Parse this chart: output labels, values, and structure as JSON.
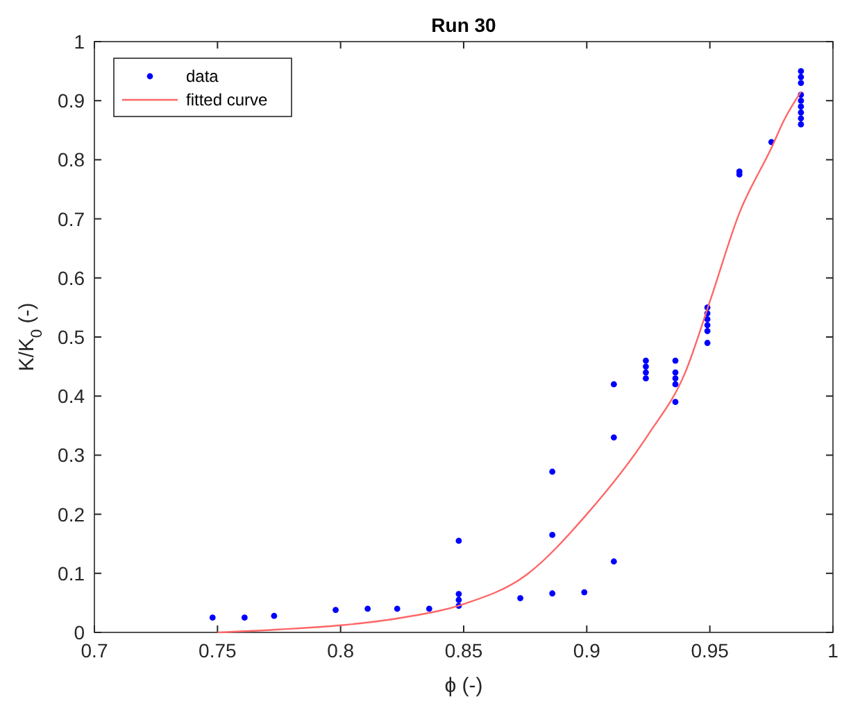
{
  "chart_data": {
    "type": "scatter",
    "title": "Run 30",
    "xlabel": "ϕ (-)",
    "ylabel": "K/K$_{0}$ (-)",
    "xlim": [
      0.7,
      1
    ],
    "ylim": [
      0,
      1
    ],
    "xticks": [
      0.7,
      0.75,
      0.8,
      0.85,
      0.9,
      0.95,
      1
    ],
    "yticks": [
      0,
      0.1,
      0.2,
      0.3,
      0.4,
      0.5,
      0.6,
      0.7,
      0.8,
      0.9,
      1
    ],
    "grid": false,
    "legend": "top left",
    "series": [
      {
        "name": "data",
        "color": "#0000ff",
        "marker": "circle",
        "x": [
          0.748,
          0.761,
          0.773,
          0.798,
          0.811,
          0.823,
          0.836,
          0.848,
          0.848,
          0.848,
          0.848,
          0.873,
          0.886,
          0.886,
          0.886,
          0.899,
          0.911,
          0.911,
          0.911,
          0.924,
          0.924,
          0.924,
          0.924,
          0.936,
          0.936,
          0.936,
          0.936,
          0.936,
          0.949,
          0.949,
          0.949,
          0.949,
          0.949,
          0.949,
          0.962,
          0.962,
          0.975,
          0.987,
          0.987,
          0.987,
          0.987,
          0.987,
          0.987,
          0.987,
          0.987,
          0.987
        ],
        "values": [
          0.025,
          0.025,
          0.028,
          0.038,
          0.04,
          0.04,
          0.04,
          0.045,
          0.055,
          0.065,
          0.155,
          0.058,
          0.066,
          0.165,
          0.272,
          0.068,
          0.12,
          0.33,
          0.42,
          0.43,
          0.44,
          0.45,
          0.46,
          0.39,
          0.42,
          0.43,
          0.44,
          0.46,
          0.49,
          0.51,
          0.52,
          0.53,
          0.54,
          0.55,
          0.775,
          0.78,
          0.83,
          0.86,
          0.87,
          0.88,
          0.89,
          0.9,
          0.91,
          0.93,
          0.94,
          0.95
        ]
      },
      {
        "name": "fitted curve",
        "color": "#ff6666",
        "type": "line",
        "x": [
          0.75,
          0.775,
          0.8,
          0.825,
          0.85,
          0.875,
          0.9,
          0.925,
          0.94,
          0.95,
          0.962,
          0.975,
          0.98,
          0.987
        ],
        "values": [
          0,
          0.005,
          0.012,
          0.025,
          0.048,
          0.096,
          0.2,
          0.335,
          0.44,
          0.56,
          0.71,
          0.82,
          0.866,
          0.915
        ]
      }
    ]
  }
}
